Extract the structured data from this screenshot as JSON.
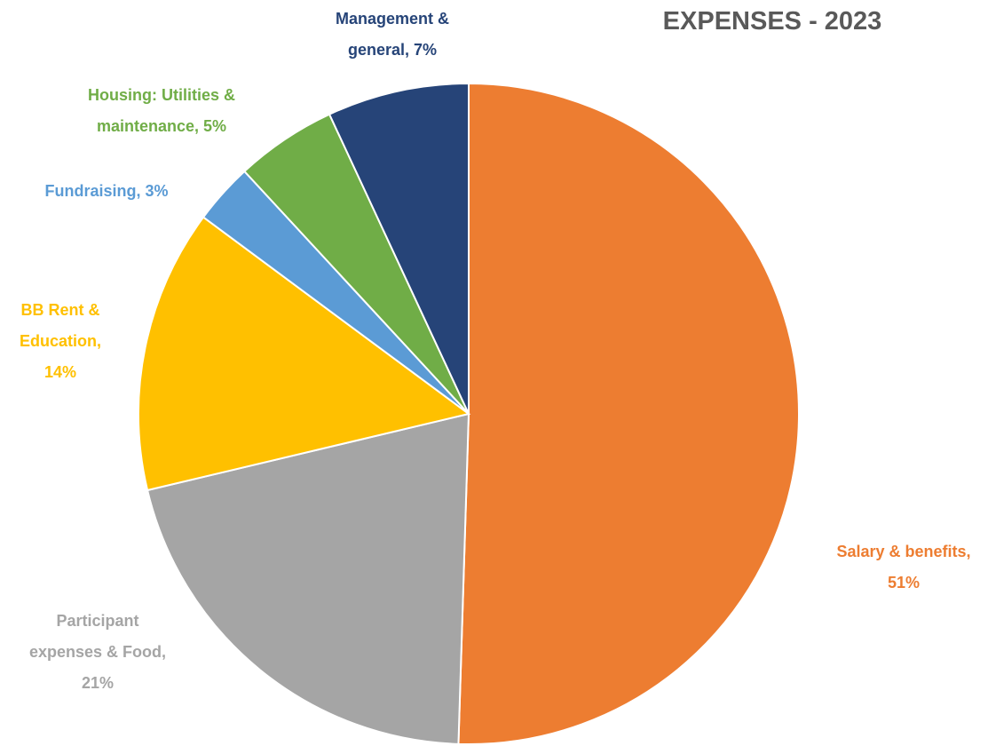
{
  "chart_data": {
    "type": "pie",
    "title": "EXPENSES - 2023",
    "categories": [
      "Salary & benefits",
      "Participant expenses & Food",
      "BB Rent & Education",
      "Fundraising",
      "Housing: Utilities & maintenance",
      "Management & general"
    ],
    "values": [
      51,
      21,
      14,
      3,
      5,
      7
    ],
    "value_labels": [
      "51%",
      "21%",
      "14%",
      "3%",
      "5%",
      "7%"
    ],
    "colors": [
      "#ED7D31",
      "#A5A5A5",
      "#FFC000",
      "#5B9BD5",
      "#70AD47",
      "#264478"
    ]
  }
}
